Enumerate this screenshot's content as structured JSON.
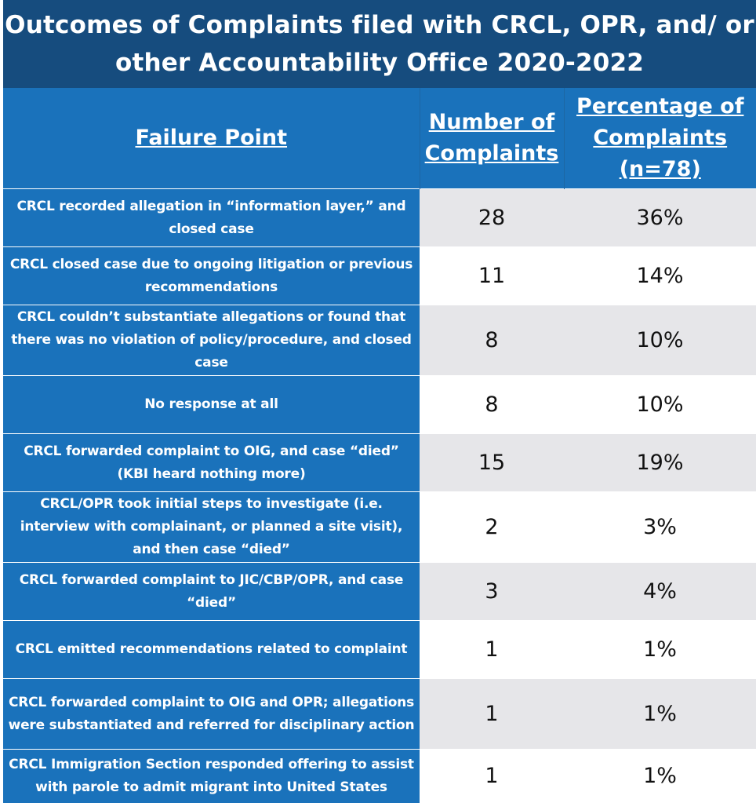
{
  "title": "Outcomes of Complaints filed with CRCL, OPR, and/ or other Accountability Office 2020-2022",
  "chart_data": {
    "type": "table",
    "columns": [
      "Failure Point",
      "Number of Complaints",
      "Percentage of Complaints"
    ],
    "percent_note": "(n=78)",
    "rows": [
      {
        "failure_point": "CRCL recorded allegation in “information layer,” and closed case",
        "number": "28",
        "percent": "36%"
      },
      {
        "failure_point": "CRCL closed case due to ongoing litigation or previous recommendations",
        "number": "11",
        "percent": "14%"
      },
      {
        "failure_point": "CRCL couldn’t substantiate allegations or found that there was no violation of policy/procedure, and closed case",
        "number": "8",
        "percent": "10%"
      },
      {
        "failure_point": "No response at all",
        "number": "8",
        "percent": "10%"
      },
      {
        "failure_point": "CRCL forwarded complaint to OIG, and case “died” (KBI heard nothing more)",
        "number": "15",
        "percent": "19%"
      },
      {
        "failure_point": "CRCL/OPR took initial steps to investigate (i.e. interview with complainant, or planned a site visit), and then case “died”",
        "number": "2",
        "percent": "3%"
      },
      {
        "failure_point": "CRCL forwarded complaint to JIC/CBP/OPR, and case “died”",
        "number": "3",
        "percent": "4%"
      },
      {
        "failure_point": "CRCL emitted recommendations related to complaint",
        "number": "1",
        "percent": "1%"
      },
      {
        "failure_point": "CRCL forwarded complaint to OIG and OPR; allegations were substantiated and referred for disciplinary action",
        "number": "1",
        "percent": "1%"
      },
      {
        "failure_point": "CRCL Immigration Section responded offering to assist with parole to admit migrant into United States",
        "number": "1",
        "percent": "1%"
      }
    ]
  },
  "colors": {
    "title_bg": "#164c7e",
    "header_bg": "#1a72bb",
    "row_shade": "#e6e6e9",
    "text_dark": "#111111",
    "text_light": "#ffffff"
  }
}
